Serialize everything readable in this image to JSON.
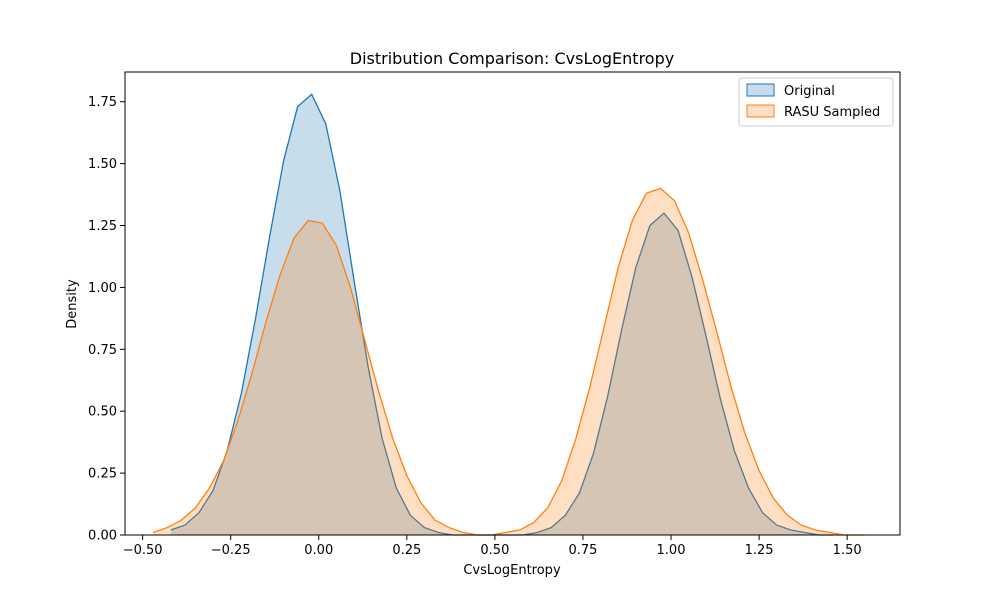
{
  "chart_data": {
    "type": "area",
    "title": "Distribution Comparison: CvsLogEntropy",
    "xlabel": "CvsLogEntropy",
    "ylabel": "Density",
    "xlim": [
      -0.55,
      1.65
    ],
    "ylim": [
      0,
      1.87
    ],
    "xticks": [
      -0.5,
      -0.25,
      0.0,
      0.25,
      0.5,
      0.75,
      1.0,
      1.25,
      1.5
    ],
    "xtick_labels": [
      "−0.50",
      "−0.25",
      "0.00",
      "0.25",
      "0.50",
      "0.75",
      "1.00",
      "1.25",
      "1.50"
    ],
    "yticks": [
      0.0,
      0.25,
      0.5,
      0.75,
      1.0,
      1.25,
      1.5,
      1.75
    ],
    "ytick_labels": [
      "0.00",
      "0.25",
      "0.50",
      "0.75",
      "1.00",
      "1.25",
      "1.50",
      "1.75"
    ],
    "grid": false,
    "legend_position": "top-right",
    "series": [
      {
        "name": "Original",
        "color": "#1f77b4",
        "fill_opacity": 0.25,
        "x": [
          -0.42,
          -0.38,
          -0.34,
          -0.3,
          -0.26,
          -0.22,
          -0.18,
          -0.14,
          -0.1,
          -0.06,
          -0.02,
          0.02,
          0.06,
          0.1,
          0.14,
          0.18,
          0.22,
          0.26,
          0.3,
          0.34,
          0.38,
          0.42,
          0.46,
          0.5,
          0.54,
          0.58,
          0.62,
          0.66,
          0.7,
          0.74,
          0.78,
          0.82,
          0.86,
          0.9,
          0.94,
          0.98,
          1.02,
          1.06,
          1.1,
          1.14,
          1.18,
          1.22,
          1.26,
          1.3,
          1.34,
          1.38,
          1.42,
          1.46
        ],
        "y": [
          0.02,
          0.04,
          0.09,
          0.18,
          0.34,
          0.57,
          0.87,
          1.2,
          1.51,
          1.73,
          1.78,
          1.66,
          1.39,
          1.03,
          0.68,
          0.39,
          0.19,
          0.08,
          0.03,
          0.01,
          0.0,
          0.0,
          0.0,
          0.0,
          0.0,
          0.0,
          0.01,
          0.03,
          0.08,
          0.17,
          0.33,
          0.56,
          0.83,
          1.08,
          1.25,
          1.3,
          1.23,
          1.04,
          0.8,
          0.55,
          0.34,
          0.19,
          0.09,
          0.04,
          0.02,
          0.01,
          0.0,
          0.0
        ]
      },
      {
        "name": "RASU Sampled",
        "color": "#ff7f0e",
        "fill_opacity": 0.25,
        "x": [
          -0.47,
          -0.43,
          -0.39,
          -0.35,
          -0.31,
          -0.27,
          -0.23,
          -0.19,
          -0.15,
          -0.11,
          -0.07,
          -0.03,
          0.01,
          0.05,
          0.09,
          0.13,
          0.17,
          0.21,
          0.25,
          0.29,
          0.33,
          0.37,
          0.41,
          0.45,
          0.49,
          0.53,
          0.57,
          0.61,
          0.65,
          0.69,
          0.73,
          0.77,
          0.81,
          0.85,
          0.89,
          0.93,
          0.97,
          1.01,
          1.05,
          1.09,
          1.13,
          1.17,
          1.21,
          1.25,
          1.29,
          1.33,
          1.37,
          1.41,
          1.45,
          1.49,
          1.55
        ],
        "y": [
          0.01,
          0.03,
          0.06,
          0.11,
          0.19,
          0.3,
          0.46,
          0.65,
          0.86,
          1.05,
          1.2,
          1.27,
          1.26,
          1.17,
          1.0,
          0.79,
          0.58,
          0.39,
          0.24,
          0.13,
          0.06,
          0.03,
          0.01,
          0.0,
          0.0,
          0.01,
          0.02,
          0.05,
          0.11,
          0.22,
          0.39,
          0.6,
          0.84,
          1.08,
          1.27,
          1.38,
          1.4,
          1.35,
          1.22,
          1.03,
          0.82,
          0.6,
          0.41,
          0.26,
          0.15,
          0.08,
          0.04,
          0.02,
          0.01,
          0.0,
          0.0
        ]
      }
    ]
  }
}
